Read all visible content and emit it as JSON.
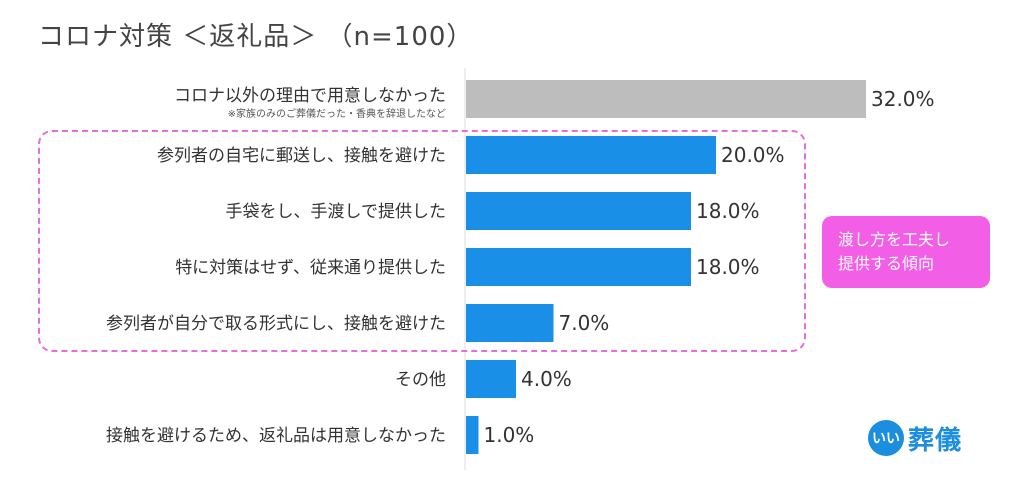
{
  "title": "コロナ対策 ＜返礼品＞ （n=100）",
  "callout": {
    "line1": "渡し方を工夫し",
    "line2": "提供する傾向"
  },
  "logo": {
    "mark_text": "いい",
    "text": "葬儀",
    "brand_color": "#1c8ee0"
  },
  "chart_data": {
    "type": "bar",
    "orientation": "horizontal",
    "title": "コロナ対策 ＜返礼品＞ （n=100）",
    "xlim": [
      0,
      35
    ],
    "grid": false,
    "unit": "%",
    "categories": [
      {
        "label": "コロナ以外の理由で用意しなかった",
        "sublabel": "※家族のみのご葬儀だった・香典を辞退したなど",
        "value": 32.0,
        "value_label": "32.0%",
        "color": "#bdbdbd"
      },
      {
        "label": "参列者の自宅に郵送し、接触を避けた",
        "value": 20.0,
        "value_label": "20.0%",
        "color": "#1a8fe8"
      },
      {
        "label": "手袋をし、手渡しで提供した",
        "value": 18.0,
        "value_label": "18.0%",
        "color": "#1a8fe8"
      },
      {
        "label": "特に対策はせず、従来通り提供した",
        "value": 18.0,
        "value_label": "18.0%",
        "color": "#1a8fe8"
      },
      {
        "label": "参列者が自分で取る形式にし、接触を避けた",
        "value": 7.0,
        "value_label": "7.0%",
        "color": "#1a8fe8"
      },
      {
        "label": "その他",
        "value": 4.0,
        "value_label": "4.0%",
        "color": "#1a8fe8"
      },
      {
        "label": "接触を避けるため、返礼品は用意しなかった",
        "value": 1.0,
        "value_label": "1.0%",
        "color": "#1a8fe8"
      }
    ],
    "highlight": {
      "group": [
        1,
        2,
        3,
        4
      ],
      "annotation": "渡し方を工夫し 提供する傾向",
      "color": "#f25ee6"
    }
  }
}
